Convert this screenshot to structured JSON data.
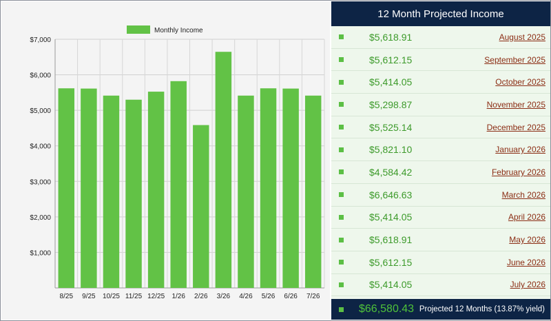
{
  "chart_data": {
    "type": "bar",
    "categories": [
      "8/25",
      "9/25",
      "10/25",
      "11/25",
      "12/25",
      "1/26",
      "2/26",
      "3/26",
      "4/26",
      "5/26",
      "6/26",
      "7/26"
    ],
    "series": [
      {
        "name": "Monthly Income",
        "values": [
          5618.91,
          5612.15,
          5414.05,
          5298.87,
          5525.14,
          5821.1,
          4584.42,
          6646.63,
          5414.05,
          5618.91,
          5612.15,
          5414.05
        ]
      }
    ],
    "ylim": [
      0,
      7000
    ],
    "yticks": [
      1000,
      2000,
      3000,
      4000,
      5000,
      6000,
      7000
    ],
    "ytick_labels": [
      "$1,000",
      "$2,000",
      "$3,000",
      "$4,000",
      "$5,000",
      "$6,000",
      "$7,000"
    ],
    "grid": true,
    "legend_position": "top-center",
    "bar_color": "#62c246"
  },
  "table": {
    "title": "12 Month Projected Income",
    "rows": [
      {
        "amount": "$5,618.91",
        "month": "August 2025"
      },
      {
        "amount": "$5,612.15",
        "month": "September 2025"
      },
      {
        "amount": "$5,414.05",
        "month": "October 2025"
      },
      {
        "amount": "$5,298.87",
        "month": "November 2025"
      },
      {
        "amount": "$5,525.14",
        "month": "December 2025"
      },
      {
        "amount": "$5,821.10",
        "month": "January 2026"
      },
      {
        "amount": "$4,584.42",
        "month": "February 2026"
      },
      {
        "amount": "$6,646.63",
        "month": "March 2026"
      },
      {
        "amount": "$5,414.05",
        "month": "April 2026"
      },
      {
        "amount": "$5,618.91",
        "month": "May 2026"
      },
      {
        "amount": "$5,612.15",
        "month": "June 2026"
      },
      {
        "amount": "$5,414.05",
        "month": "July 2026"
      }
    ],
    "total": "$66,580.43",
    "total_label": "Projected 12 Months (13.87% yield)"
  },
  "colors": {
    "bullet": "#5cbf45",
    "header_bg": "#0d2445",
    "amount_text": "#3c9a2a",
    "month_link": "#8b2d14"
  }
}
